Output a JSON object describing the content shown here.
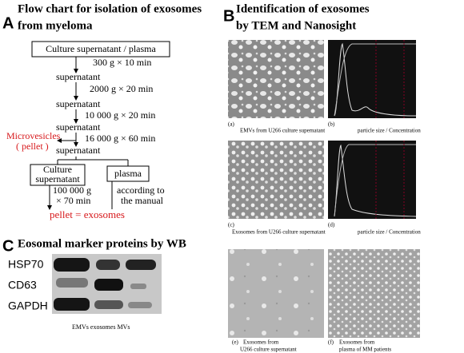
{
  "panel_a": {
    "label": "A",
    "title_lines": [
      "Flow chart for isolation of exosomes",
      "from myeloma"
    ],
    "start_box": "Culture supernatant / plasma",
    "steps": [
      "300 g × 10 min",
      "2000 g × 20 min",
      "10 000 g × 20 min",
      "16 000 g × 60 min"
    ],
    "supernatant": [
      "supernatant",
      "supernatant",
      "supernatant",
      "supernatant"
    ],
    "side_product_lines": [
      "Microvesicles",
      "( pellet )"
    ],
    "branch_boxes": [
      [
        "Culture",
        "supernatant"
      ],
      [
        "plasma"
      ]
    ],
    "final_step_lines": [
      "100 000 g",
      "× 70 min"
    ],
    "manual_lines": [
      "according to",
      "the manual"
    ],
    "result": "pellet = exosomes"
  },
  "panel_b": {
    "label": "B",
    "title_lines": [
      "Identification of exosomes",
      "by TEM and Nanosight"
    ],
    "images": [
      {
        "tag": "(a)",
        "caption_lines": [
          "EMVs from U266 culture supernatant"
        ]
      },
      {
        "tag": "(b)",
        "caption_lines": [
          "particle size / Concentration"
        ]
      },
      {
        "tag": "(c)",
        "caption_lines": [
          "Exosomes from U266 culture supernatant"
        ]
      },
      {
        "tag": "(d)",
        "caption_lines": [
          "particle size / Concentration"
        ]
      },
      {
        "tag": "(e)",
        "caption_lines": [
          "Exosomes from",
          "U266 culture supernatant"
        ]
      },
      {
        "tag": "(f)",
        "caption_lines": [
          "Exosomes from",
          "plasma of MM patients"
        ]
      }
    ]
  },
  "panel_c": {
    "label": "C",
    "title": "Eosomal marker proteins by WB",
    "rows": [
      "HSP70",
      "CD63",
      "GAPDH"
    ],
    "lanes": "EMVs exosomes MVs"
  }
}
